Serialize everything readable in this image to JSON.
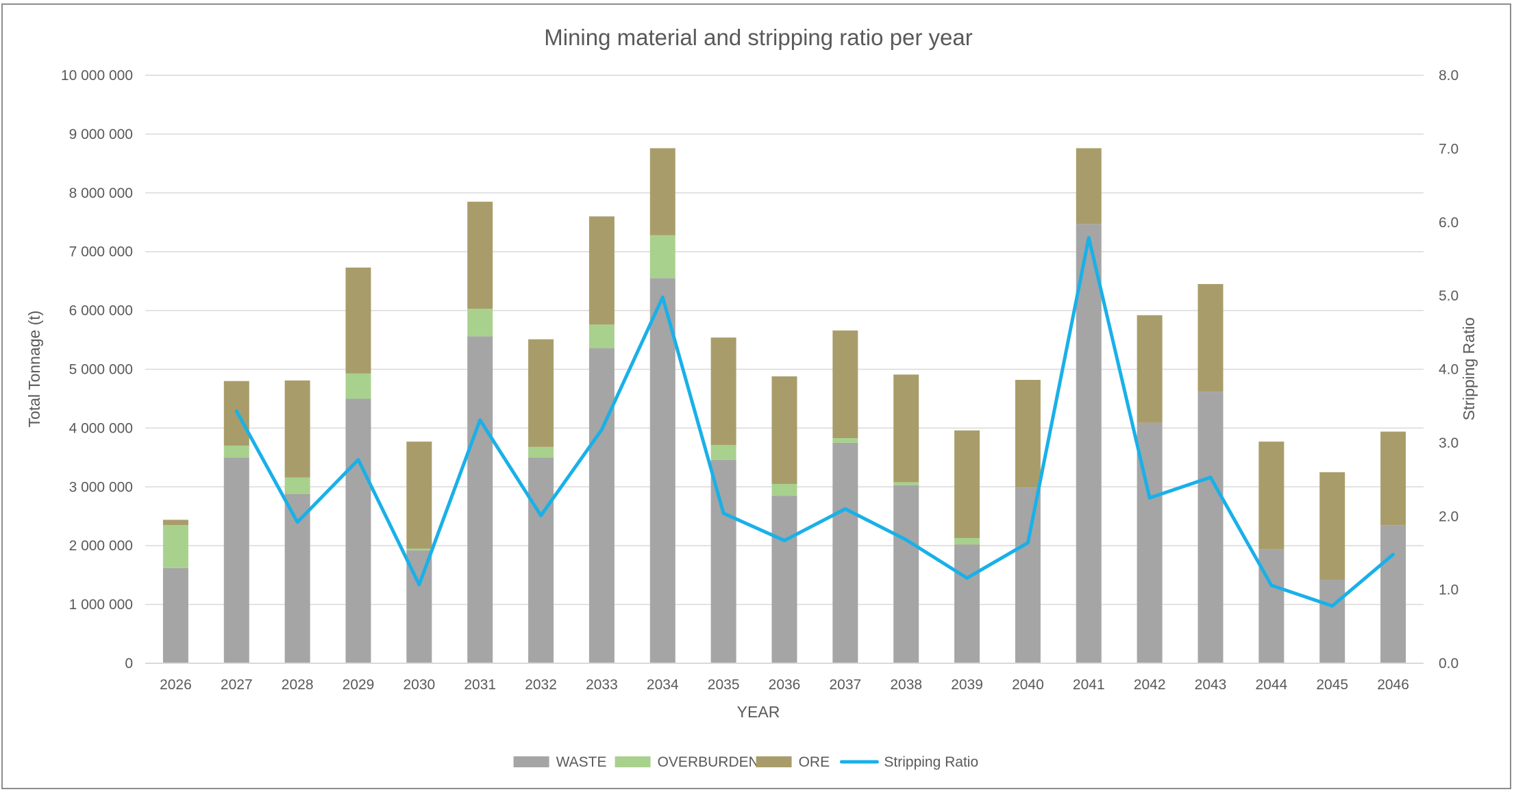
{
  "chart_data": {
    "type": "bar",
    "stacked": true,
    "title": "Mining material and stripping ratio per year",
    "xlabel": "YEAR",
    "ylabel": "Total Tonnage (t)",
    "y2label": "Stripping Ratio",
    "ylim": [
      0,
      10000000
    ],
    "y2lim": [
      0,
      8
    ],
    "yticks": [
      0,
      1000000,
      2000000,
      3000000,
      4000000,
      5000000,
      6000000,
      7000000,
      8000000,
      9000000,
      10000000
    ],
    "ytick_labels": [
      "0",
      "1 000 000",
      "2 000 000",
      "3 000 000",
      "4 000 000",
      "5 000 000",
      "6 000 000",
      "7 000 000",
      "8 000 000",
      "9 000 000",
      "10 000 000"
    ],
    "y2ticks": [
      0,
      1,
      2,
      3,
      4,
      5,
      6,
      7,
      8
    ],
    "y2tick_labels": [
      "0.0",
      "1.0",
      "2.0",
      "3.0",
      "4.0",
      "5.0",
      "6.0",
      "7.0",
      "8.0"
    ],
    "grid": true,
    "legend_position": "bottom-center",
    "categories": [
      "2026",
      "2027",
      "2028",
      "2029",
      "2030",
      "2031",
      "2032",
      "2033",
      "2034",
      "2035",
      "2036",
      "2037",
      "2038",
      "2039",
      "2040",
      "2041",
      "2042",
      "2043",
      "2044",
      "2045",
      "2046"
    ],
    "series": [
      {
        "name": "WASTE",
        "kind": "bar",
        "axis": "left",
        "color": "#a5a5a5",
        "values": [
          1620000,
          3500000,
          2880000,
          4500000,
          1920000,
          5560000,
          3500000,
          5360000,
          6550000,
          3460000,
          2850000,
          3750000,
          3030000,
          2020000,
          2990000,
          7470000,
          4090000,
          4620000,
          1940000,
          1420000,
          2350000
        ]
      },
      {
        "name": "OVERBURDEN",
        "kind": "bar",
        "axis": "left",
        "color": "#a9d18e",
        "values": [
          730000,
          200000,
          280000,
          430000,
          30000,
          470000,
          180000,
          400000,
          730000,
          250000,
          200000,
          80000,
          50000,
          110000,
          0,
          0,
          0,
          0,
          0,
          0,
          0
        ]
      },
      {
        "name": "ORE",
        "kind": "bar",
        "axis": "left",
        "color": "#a89d6a",
        "values": [
          90000,
          1100000,
          1650000,
          1800000,
          1820000,
          1820000,
          1830000,
          1840000,
          1480000,
          1830000,
          1830000,
          1830000,
          1830000,
          1830000,
          1830000,
          1290000,
          1830000,
          1830000,
          1830000,
          1830000,
          1590000
        ]
      },
      {
        "name": "Stripping Ratio",
        "kind": "line",
        "axis": "right",
        "color": "#1ab0e8",
        "values": [
          null,
          3.43,
          1.92,
          2.77,
          1.07,
          3.31,
          2.01,
          3.18,
          4.98,
          2.04,
          1.67,
          2.1,
          1.68,
          1.16,
          1.64,
          5.79,
          2.25,
          2.53,
          1.06,
          0.78,
          1.48
        ]
      }
    ]
  }
}
